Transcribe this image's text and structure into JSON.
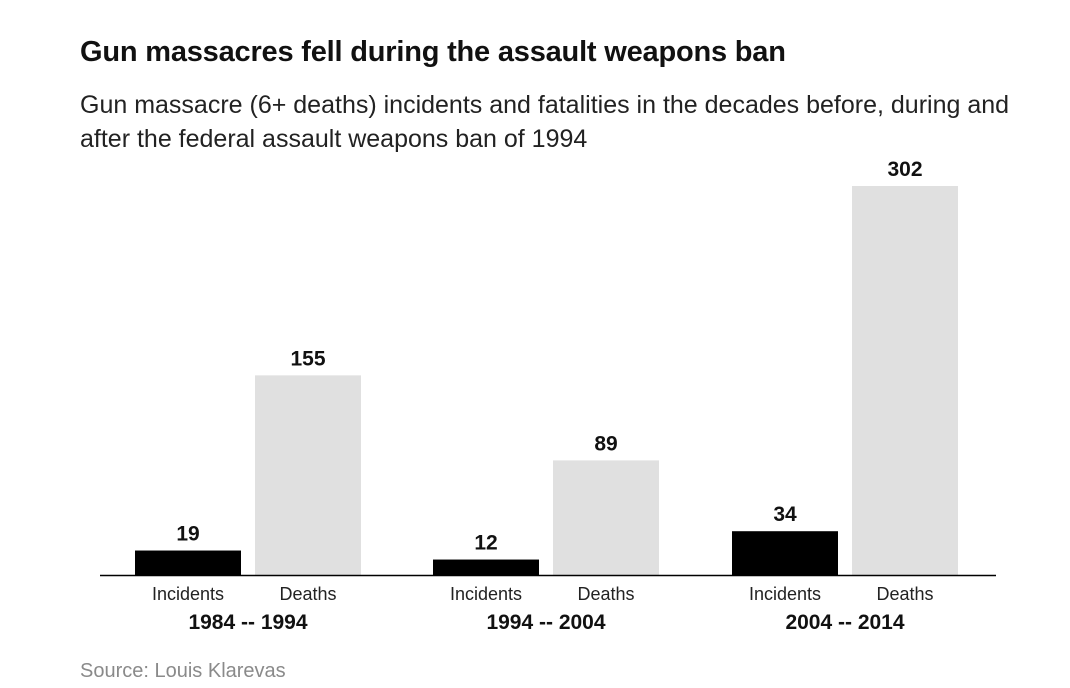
{
  "header": {
    "title": "Gun massacres fell during the assault weapons ban",
    "subtitle": "Gun massacre (6+ deaths) incidents and fatalities in the decades before, during and after the federal assault weapons ban of 1994"
  },
  "footer": {
    "source": "Source: Louis Klarevas"
  },
  "colors": {
    "incidents": "#000000",
    "deaths": "#e0e0e0",
    "axis": "#000000"
  },
  "chart_data": {
    "type": "bar",
    "title": "Gun massacres fell during the assault weapons ban",
    "subtitle": "Gun massacre (6+ deaths) incidents and fatalities in the decades before, during and after the federal assault weapons ban of 1994",
    "categories": [
      "1984 -- 1994",
      "1994 -- 2004",
      "2004 -- 2014"
    ],
    "series": [
      {
        "name": "Incidents",
        "values": [
          19,
          12,
          34
        ]
      },
      {
        "name": "Deaths",
        "values": [
          155,
          89,
          302
        ]
      }
    ],
    "xlabel": "",
    "ylabel": "",
    "ylim": [
      0,
      302
    ],
    "grid": false,
    "legend": "none",
    "data_labels": true
  }
}
